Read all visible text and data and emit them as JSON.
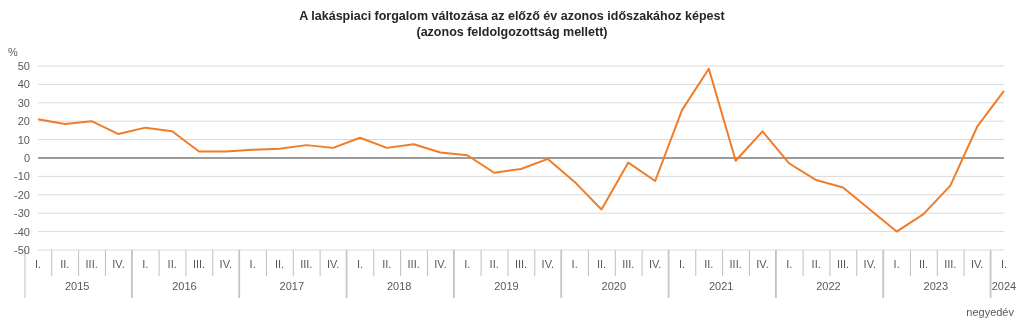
{
  "chart_data": {
    "type": "line",
    "title": "A lakáspiaci forgalom változása az előző év azonos időszakához képest",
    "subtitle": "(azonos feldolgozottság mellett)",
    "ylabel": "%",
    "xlabel": "negyedév",
    "categories": [
      "I.",
      "II.",
      "III.",
      "IV.",
      "I.",
      "II.",
      "III.",
      "IV.",
      "I.",
      "II.",
      "III.",
      "IV.",
      "I.",
      "II.",
      "III.",
      "IV.",
      "I.",
      "II.",
      "III.",
      "IV.",
      "I.",
      "II.",
      "III.",
      "IV.",
      "I.",
      "II.",
      "III.",
      "IV.",
      "I.",
      "II.",
      "III.",
      "IV.",
      "I.",
      "II.",
      "III.",
      "IV.",
      "I."
    ],
    "series": [
      {
        "color": "#f07c28",
        "values": [
          21,
          18.5,
          20,
          13,
          16.5,
          14.5,
          3.5,
          3.5,
          4.5,
          5,
          7,
          5.5,
          11,
          5.5,
          7.5,
          3,
          1.5,
          -8,
          -6,
          -0.5,
          -13,
          -28,
          -2.5,
          -12.5,
          26,
          48.5,
          -1.5,
          14.5,
          -3,
          -12,
          -16,
          -28,
          -40,
          -30.5,
          -15,
          17,
          36.5
        ]
      }
    ],
    "annotations": [
      "2015",
      "2016",
      "2017",
      "2018",
      "2019",
      "2020",
      "2021",
      "2022",
      "2023",
      "2024"
    ],
    "ylim": [
      -50,
      50
    ],
    "yticks": [
      -50,
      -40,
      -30,
      -20,
      -10,
      0,
      10,
      20,
      30,
      40,
      50
    ],
    "grid": "y",
    "marker": "none",
    "line_style": "solid",
    "ref_lines": [
      {
        "axis": "y",
        "value": 0,
        "color": "#808080"
      }
    ]
  }
}
